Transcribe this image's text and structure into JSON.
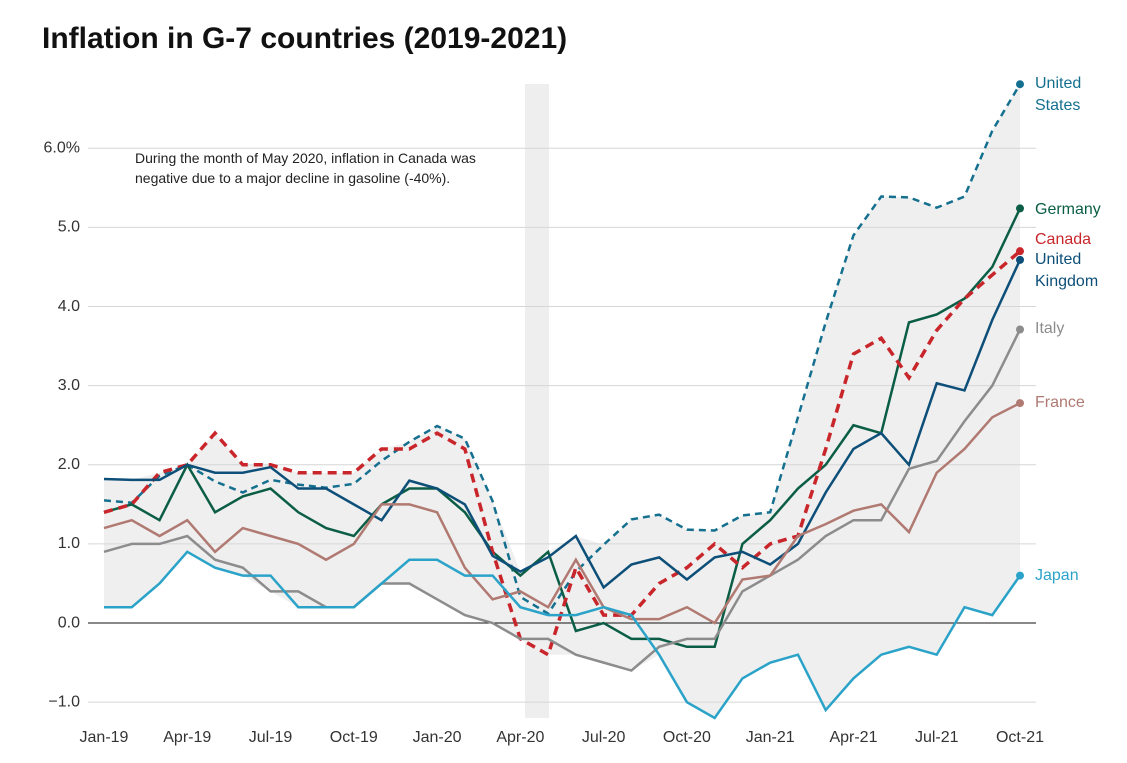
{
  "chart_data": {
    "type": "line",
    "title": "Inflation in G-7 countries (2019-2021)",
    "annotation": "During the month of May 2020, inflation in Canada was negative due to a major decline in gasoline (-40%).",
    "categories": [
      "Jan-19",
      null,
      null,
      "Apr-19",
      null,
      null,
      "Jul-19",
      null,
      null,
      "Oct-19",
      null,
      null,
      "Jan-20",
      null,
      null,
      "Apr-20",
      null,
      null,
      "Jul-20",
      null,
      null,
      "Oct-20",
      null,
      null,
      "Jan-21",
      null,
      null,
      "Apr-21",
      null,
      null,
      "Jul-21",
      null,
      null,
      "Oct-21"
    ],
    "ylim": [
      -1.2,
      6.8
    ],
    "yticks": [
      {
        "value": -1,
        "label": "−1.0"
      },
      {
        "value": 0,
        "label": "0.0"
      },
      {
        "value": 1,
        "label": "1.0"
      },
      {
        "value": 2,
        "label": "2.0"
      },
      {
        "value": 3,
        "label": "3.0"
      },
      {
        "value": 4,
        "label": "4.0"
      },
      {
        "value": 5,
        "label": "5.0"
      },
      {
        "value": 6,
        "label": "6.0%"
      }
    ],
    "grid": true,
    "series": [
      {
        "name": "United States",
        "color": "#15708f",
        "dashed": true,
        "values": [
          1.55,
          1.52,
          1.86,
          2.0,
          1.79,
          1.65,
          1.81,
          1.75,
          1.71,
          1.76,
          2.05,
          2.29,
          2.49,
          2.33,
          1.54,
          0.33,
          0.12,
          0.65,
          0.99,
          1.31,
          1.37,
          1.18,
          1.17,
          1.36,
          1.4,
          2.6,
          3.8,
          4.9,
          5.39,
          5.38,
          5.25,
          5.39,
          6.22,
          6.81
        ]
      },
      {
        "name": "Germany",
        "color": "#0b5e45",
        "dashed": false,
        "values": [
          1.4,
          1.5,
          1.3,
          2.0,
          1.4,
          1.6,
          1.7,
          1.4,
          1.2,
          1.1,
          1.5,
          1.7,
          1.7,
          1.4,
          0.9,
          0.6,
          0.9,
          -0.1,
          0.0,
          -0.2,
          -0.2,
          -0.3,
          -0.3,
          1.0,
          1.3,
          1.7,
          2.0,
          2.5,
          2.4,
          3.8,
          3.9,
          4.1,
          4.5,
          5.24
        ]
      },
      {
        "name": "Canada",
        "color": "#c8262b",
        "dashed": true,
        "values": [
          1.4,
          1.5,
          1.9,
          2.0,
          2.4,
          2.0,
          2.0,
          1.9,
          1.9,
          1.9,
          2.2,
          2.2,
          2.4,
          2.2,
          0.9,
          -0.2,
          -0.4,
          0.7,
          0.1,
          0.1,
          0.5,
          0.7,
          1.0,
          0.7,
          1.0,
          1.1,
          2.2,
          3.4,
          3.6,
          3.1,
          3.7,
          4.1,
          4.4,
          4.7
        ]
      },
      {
        "name": "United Kingdom",
        "color": "#0d4f78",
        "dashed": false,
        "values": [
          1.82,
          1.81,
          1.81,
          2.0,
          1.9,
          1.9,
          1.97,
          1.7,
          1.7,
          1.5,
          1.3,
          1.8,
          1.7,
          1.5,
          0.85,
          0.65,
          0.83,
          1.1,
          0.45,
          0.74,
          0.83,
          0.55,
          0.83,
          0.9,
          0.74,
          1.0,
          1.65,
          2.2,
          2.4,
          2.0,
          3.03,
          2.94,
          3.83,
          4.59
        ]
      },
      {
        "name": "Italy",
        "color": "#8c8c8c",
        "dashed": false,
        "values": [
          0.9,
          1.0,
          1.0,
          1.1,
          0.8,
          0.7,
          0.4,
          0.4,
          0.2,
          0.2,
          0.5,
          0.5,
          0.3,
          0.1,
          0.0,
          -0.2,
          -0.2,
          -0.4,
          -0.5,
          -0.6,
          -0.3,
          -0.2,
          -0.2,
          0.4,
          0.6,
          0.8,
          1.1,
          1.3,
          1.3,
          1.95,
          2.05,
          2.55,
          3.0,
          3.71
        ]
      },
      {
        "name": "France",
        "color": "#b07a72",
        "dashed": false,
        "values": [
          1.2,
          1.3,
          1.1,
          1.3,
          0.9,
          1.2,
          1.1,
          1.0,
          0.8,
          1.0,
          1.5,
          1.5,
          1.4,
          0.7,
          0.3,
          0.4,
          0.2,
          0.8,
          0.2,
          0.05,
          0.05,
          0.2,
          0.0,
          0.55,
          0.6,
          1.1,
          1.25,
          1.42,
          1.5,
          1.15,
          1.9,
          2.2,
          2.6,
          2.78
        ]
      },
      {
        "name": "Japan",
        "color": "#2ba3c9",
        "dashed": false,
        "values": [
          0.2,
          0.2,
          0.5,
          0.9,
          0.7,
          0.6,
          0.6,
          0.2,
          0.2,
          0.2,
          0.5,
          0.8,
          0.8,
          0.6,
          0.6,
          0.2,
          0.1,
          0.1,
          0.2,
          0.1,
          -0.4,
          -1.0,
          -1.2,
          -0.7,
          -0.5,
          -0.4,
          -1.1,
          -0.7,
          -0.4,
          -0.3,
          -0.4,
          0.2,
          0.1,
          0.6
        ]
      }
    ]
  }
}
